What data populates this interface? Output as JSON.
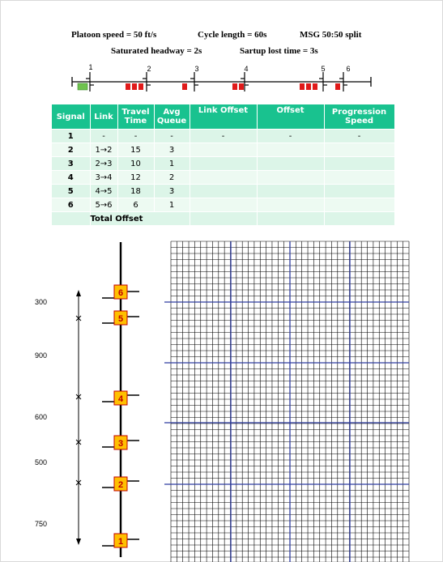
{
  "parameters": {
    "platoon_speed": "Platoon speed = 50 ft/s",
    "cycle_length": "Cycle length = 60s",
    "msg_split": "MSG 50:50 split",
    "saturated_headway": "Saturated headway = 2s",
    "startup_lost_time": "Sartup lost time = 3s"
  },
  "road_diagram": {
    "signal_labels": [
      "1",
      "2",
      "3",
      "4",
      "5",
      "6"
    ],
    "colors": {
      "green_vehicle": "#6fc24f",
      "red_vehicle": "#e01a1a"
    }
  },
  "table": {
    "headers": [
      "Signal",
      "Link",
      "Travel Time",
      "Avg Queue",
      "Link Offset",
      "Offset",
      "Progression Speed"
    ],
    "rows": [
      {
        "signal": "1",
        "link": "-",
        "travel_time": "-",
        "avg_queue": "-",
        "link_offset": "-",
        "offset": "-",
        "progression_speed": "-"
      },
      {
        "signal": "2",
        "link": "1→2",
        "travel_time": "15",
        "avg_queue": "3",
        "link_offset": "",
        "offset": "",
        "progression_speed": ""
      },
      {
        "signal": "3",
        "link": "2→3",
        "travel_time": "10",
        "avg_queue": "1",
        "link_offset": "",
        "offset": "",
        "progression_speed": ""
      },
      {
        "signal": "4",
        "link": "3→4",
        "travel_time": "12",
        "avg_queue": "2",
        "link_offset": "",
        "offset": "",
        "progression_speed": ""
      },
      {
        "signal": "5",
        "link": "4→5",
        "travel_time": "18",
        "avg_queue": "3",
        "link_offset": "",
        "offset": "",
        "progression_speed": ""
      },
      {
        "signal": "6",
        "link": "5→6",
        "travel_time": "6",
        "avg_queue": "1",
        "link_offset": "",
        "offset": "",
        "progression_speed": ""
      }
    ],
    "total_label": "Total Offset",
    "header_color": "#19c28f"
  },
  "space_diagram": {
    "distances": [
      "300",
      "900",
      "600",
      "500",
      "750"
    ],
    "signal_labels": [
      "6",
      "5",
      "4",
      "3",
      "2",
      "1"
    ],
    "colors": {
      "signal_box": "#ffc000",
      "signal_box_border": "#c00000",
      "signal_text": "#c00000"
    }
  },
  "grid": {
    "line_color": "#000000",
    "major_color": "#2e3ca0"
  }
}
